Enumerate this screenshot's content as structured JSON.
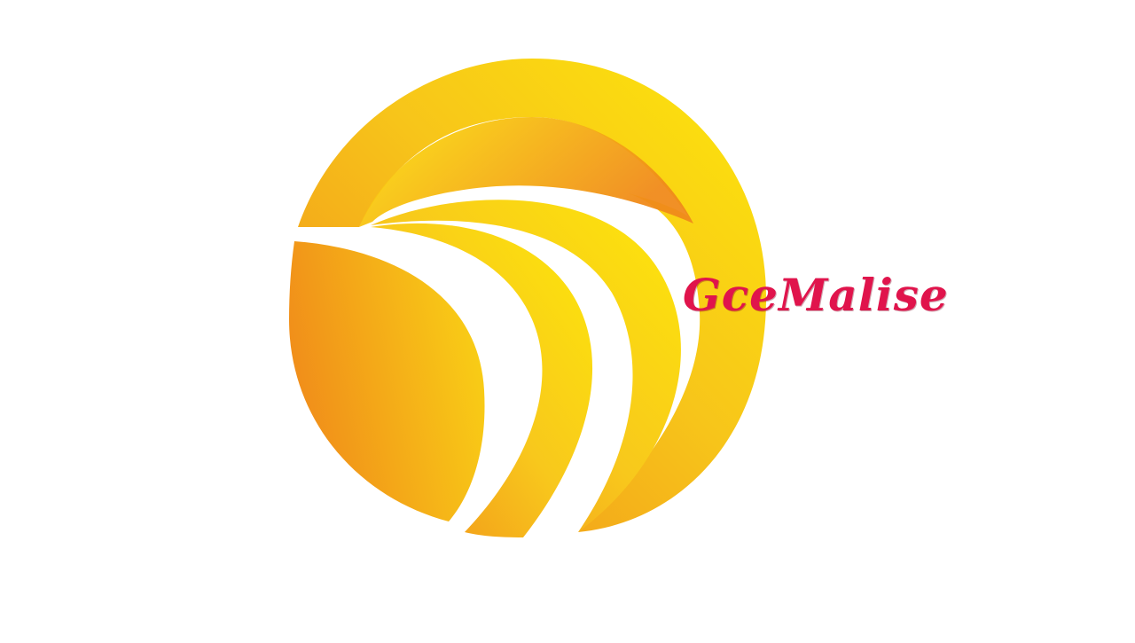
{
  "logo": {
    "brand_text": "GceMalise",
    "icon_name": "yellow-swoosh-circle-logo",
    "colors": {
      "gold_light": "#FDE70A",
      "gold_mid": "#F7C51A",
      "gold_dark": "#F08A1A",
      "brand_text": "#E0144C",
      "background": "#FFFFFF"
    }
  }
}
